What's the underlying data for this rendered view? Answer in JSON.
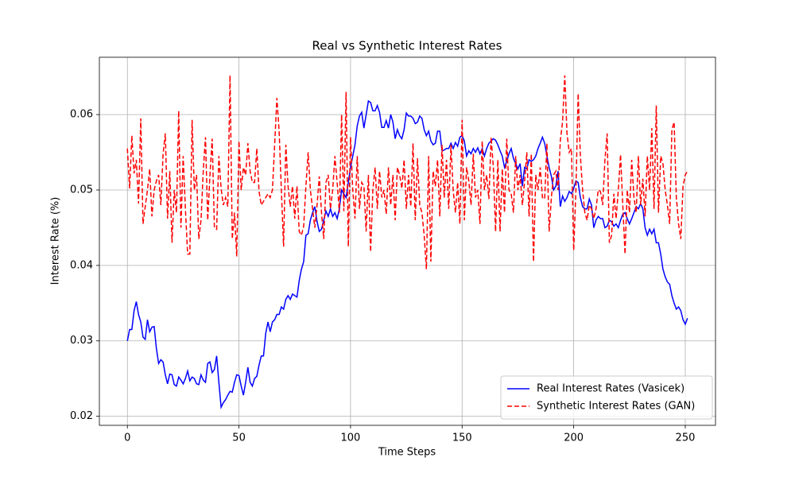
{
  "chart_data": {
    "type": "line",
    "title": "Real vs Synthetic Interest Rates",
    "xlabel": "Time Steps",
    "ylabel": "Interest Rate (%)",
    "xlim": [
      -12.55,
      263.55
    ],
    "ylim": [
      0.0188,
      0.0676
    ],
    "xticks": [
      0,
      50,
      100,
      150,
      200,
      250
    ],
    "yticks": [
      0.02,
      0.03,
      0.04,
      0.05,
      0.06
    ],
    "grid": true,
    "legend": "lower right",
    "x": [
      0,
      1,
      2,
      3,
      4,
      5,
      6,
      7,
      8,
      9,
      10,
      11,
      12,
      13,
      14,
      15,
      16,
      17,
      18,
      19,
      20,
      21,
      22,
      23,
      24,
      25,
      26,
      27,
      28,
      29,
      30,
      31,
      32,
      33,
      34,
      35,
      36,
      37,
      38,
      39,
      40,
      41,
      42,
      43,
      44,
      45,
      46,
      47,
      48,
      49,
      50,
      51,
      52,
      53,
      54,
      55,
      56,
      57,
      58,
      59,
      60,
      61,
      62,
      63,
      64,
      65,
      66,
      67,
      68,
      69,
      70,
      71,
      72,
      73,
      74,
      75,
      76,
      77,
      78,
      79,
      80,
      81,
      82,
      83,
      84,
      85,
      86,
      87,
      88,
      89,
      90,
      91,
      92,
      93,
      94,
      95,
      96,
      97,
      98,
      99,
      100,
      101,
      102,
      103,
      104,
      105,
      106,
      107,
      108,
      109,
      110,
      111,
      112,
      113,
      114,
      115,
      116,
      117,
      118,
      119,
      120,
      121,
      122,
      123,
      124,
      125,
      126,
      127,
      128,
      129,
      130,
      131,
      132,
      133,
      134,
      135,
      136,
      137,
      138,
      139,
      140,
      141,
      142,
      143,
      144,
      145,
      146,
      147,
      148,
      149,
      150,
      151,
      152,
      153,
      154,
      155,
      156,
      157,
      158,
      159,
      160,
      161,
      162,
      163,
      164,
      165,
      166,
      167,
      168,
      169,
      170,
      171,
      172,
      173,
      174,
      175,
      176,
      177,
      178,
      179,
      180,
      181,
      182,
      183,
      184,
      185,
      186,
      187,
      188,
      189,
      190,
      191,
      192,
      193,
      194,
      195,
      196,
      197,
      198,
      199,
      200,
      201,
      202,
      203,
      204,
      205,
      206,
      207,
      208,
      209,
      210,
      211,
      212,
      213,
      214,
      215,
      216,
      217,
      218,
      219,
      220,
      221,
      222,
      223,
      224,
      225,
      226,
      227,
      228,
      229,
      230,
      231,
      232,
      233,
      234,
      235,
      236,
      237,
      238,
      239,
      240,
      241,
      242,
      243,
      244,
      245,
      246,
      247,
      248,
      249,
      250,
      251
    ],
    "series": [
      {
        "name": "Real Interest Rates (Vasicek)",
        "color": "#0000ff",
        "linestyle": "solid",
        "values": [
          0.03,
          0.0315,
          0.0315,
          0.034,
          0.0352,
          0.0335,
          0.0325,
          0.0305,
          0.0302,
          0.0328,
          0.0312,
          0.0318,
          0.0319,
          0.029,
          0.027,
          0.0275,
          0.0272,
          0.0255,
          0.0243,
          0.0256,
          0.0255,
          0.0242,
          0.024,
          0.0252,
          0.0248,
          0.0243,
          0.025,
          0.026,
          0.0247,
          0.0252,
          0.025,
          0.0243,
          0.0242,
          0.0255,
          0.0248,
          0.0245,
          0.027,
          0.0272,
          0.0258,
          0.0262,
          0.028,
          0.0245,
          0.0212,
          0.0218,
          0.0222,
          0.0228,
          0.0233,
          0.0232,
          0.0245,
          0.0255,
          0.0254,
          0.024,
          0.0228,
          0.0245,
          0.0265,
          0.0245,
          0.024,
          0.025,
          0.0253,
          0.0268,
          0.028,
          0.028,
          0.031,
          0.0325,
          0.0312,
          0.0325,
          0.0328,
          0.0335,
          0.0335,
          0.0345,
          0.0342,
          0.0355,
          0.036,
          0.0355,
          0.0362,
          0.036,
          0.0358,
          0.038,
          0.0395,
          0.0405,
          0.044,
          0.0442,
          0.046,
          0.047,
          0.0478,
          0.0458,
          0.0445,
          0.0448,
          0.046,
          0.0472,
          0.0465,
          0.0475,
          0.0465,
          0.047,
          0.0462,
          0.0475,
          0.05,
          0.0495,
          0.049,
          0.051,
          0.053,
          0.0545,
          0.056,
          0.0585,
          0.0598,
          0.0603,
          0.0582,
          0.06,
          0.0618,
          0.0616,
          0.0605,
          0.0605,
          0.0612,
          0.0603,
          0.0583,
          0.0583,
          0.0592,
          0.0582,
          0.06,
          0.059,
          0.0568,
          0.058,
          0.0572,
          0.0568,
          0.058,
          0.0602,
          0.0598,
          0.0598,
          0.0595,
          0.0588,
          0.059,
          0.0598,
          0.0595,
          0.058,
          0.0572,
          0.0578,
          0.0565,
          0.056,
          0.0562,
          0.0578,
          0.0578,
          0.0552,
          0.0553,
          0.0555,
          0.0555,
          0.0562,
          0.0555,
          0.0563,
          0.0558,
          0.057,
          0.0572,
          0.0565,
          0.0545,
          0.0552,
          0.0548,
          0.0555,
          0.055,
          0.0556,
          0.0548,
          0.0555,
          0.0545,
          0.0555,
          0.0562,
          0.0565,
          0.0568,
          0.0566,
          0.056,
          0.0552,
          0.0545,
          0.053,
          0.0538,
          0.0548,
          0.0555,
          0.0542,
          0.0535,
          0.0528,
          0.0535,
          0.0505,
          0.053,
          0.0528,
          0.054,
          0.0538,
          0.054,
          0.0545,
          0.0555,
          0.0562,
          0.057,
          0.0562,
          0.0545,
          0.053,
          0.0518,
          0.05,
          0.0505,
          0.0525,
          0.0478,
          0.0492,
          0.0485,
          0.049,
          0.0498,
          0.0495,
          0.0502,
          0.0512,
          0.051,
          0.049,
          0.0478,
          0.0475,
          0.0475,
          0.0488,
          0.048,
          0.045,
          0.046,
          0.0465,
          0.0462,
          0.0462,
          0.045,
          0.0452,
          0.046,
          0.0458,
          0.0452,
          0.0455,
          0.045,
          0.046,
          0.0468,
          0.047,
          0.0462,
          0.0455,
          0.0462,
          0.047,
          0.0478,
          0.0475,
          0.0482,
          0.0475,
          0.045,
          0.044,
          0.0448,
          0.0442,
          0.0448,
          0.043,
          0.043,
          0.0415,
          0.0395,
          0.0385,
          0.0378,
          0.0375,
          0.036,
          0.035,
          0.0342,
          0.0345,
          0.034,
          0.0328,
          0.0322,
          0.033
        ]
      },
      {
        "name": "Synthetic Interest Rates (GAN)",
        "color": "#ff0000",
        "linestyle": "dashed",
        "values": [
          0.0555,
          0.0502,
          0.0572,
          0.0522,
          0.054,
          0.0482,
          0.0595,
          0.0455,
          0.0478,
          0.05,
          0.0528,
          0.0465,
          0.05,
          0.0512,
          0.052,
          0.048,
          0.0548,
          0.0575,
          0.0462,
          0.0525,
          0.043,
          0.05,
          0.047,
          0.0605,
          0.045,
          0.0545,
          0.0475,
          0.0415,
          0.0415,
          0.0593,
          0.05,
          0.052,
          0.0435,
          0.046,
          0.0525,
          0.057,
          0.046,
          0.052,
          0.0568,
          0.045,
          0.0448,
          0.0545,
          0.0502,
          0.048,
          0.049,
          0.0478,
          0.0652,
          0.0435,
          0.047,
          0.0412,
          0.0565,
          0.05,
          0.053,
          0.052,
          0.0562,
          0.0525,
          0.051,
          0.051,
          0.0555,
          0.0498,
          0.048,
          0.0485,
          0.049,
          0.0495,
          0.049,
          0.05,
          0.056,
          0.0622,
          0.0578,
          0.05,
          0.0425,
          0.056,
          0.0505,
          0.0478,
          0.0505,
          0.0462,
          0.0505,
          0.0445,
          0.044,
          0.0452,
          0.0505,
          0.055,
          0.05,
          0.0475,
          0.045,
          0.048,
          0.0518,
          0.047,
          0.0435,
          0.051,
          0.052,
          0.0475,
          0.05,
          0.0545,
          0.051,
          0.047,
          0.06,
          0.0472,
          0.063,
          0.0425,
          0.057,
          0.05,
          0.0462,
          0.0545,
          0.0475,
          0.051,
          0.0505,
          0.0445,
          0.052,
          0.0418,
          0.05,
          0.053,
          0.0475,
          0.0525,
          0.049,
          0.05,
          0.0468,
          0.053,
          0.048,
          0.052,
          0.046,
          0.053,
          0.052,
          0.0502,
          0.054,
          0.0475,
          0.052,
          0.0478,
          0.0562,
          0.046,
          0.0542,
          0.048,
          0.047,
          0.044,
          0.0395,
          0.0545,
          0.0405,
          0.0525,
          0.0505,
          0.054,
          0.0465,
          0.056,
          0.049,
          0.054,
          0.0475,
          0.056,
          0.05,
          0.047,
          0.051,
          0.0455,
          0.0593,
          0.046,
          0.053,
          0.0512,
          0.048,
          0.0548,
          0.049,
          0.05,
          0.0455,
          0.0565,
          0.05,
          0.052,
          0.0488,
          0.057,
          0.053,
          0.0445,
          0.054,
          0.0445,
          0.0528,
          0.047,
          0.0568,
          0.05,
          0.0495,
          0.047,
          0.0545,
          0.05,
          0.052,
          0.048,
          0.0512,
          0.055,
          0.0465,
          0.0548,
          0.0405,
          0.052,
          0.05,
          0.053,
          0.049,
          0.0488,
          0.0562,
          0.0445,
          0.049,
          0.052,
          0.0525,
          0.05,
          0.0565,
          0.059,
          0.0652,
          0.0575,
          0.055,
          0.0555,
          0.042,
          0.05,
          0.0628,
          0.0545,
          0.05,
          0.047,
          0.046,
          0.048,
          0.0475,
          0.0462,
          0.0475,
          0.05,
          0.0498,
          0.048,
          0.054,
          0.0575,
          0.043,
          0.044,
          0.0495,
          0.0462,
          0.05,
          0.0547,
          0.048,
          0.0415,
          0.05,
          0.047,
          0.054,
          0.049,
          0.047,
          0.0545,
          0.048,
          0.0515,
          0.0465,
          0.0545,
          0.05,
          0.0582,
          0.0475,
          0.0612,
          0.047,
          0.0545,
          0.0535,
          0.05,
          0.048,
          0.0455,
          0.058,
          0.059,
          0.049,
          0.0455,
          0.0435,
          0.0505,
          0.052,
          0.0525
        ]
      }
    ]
  }
}
